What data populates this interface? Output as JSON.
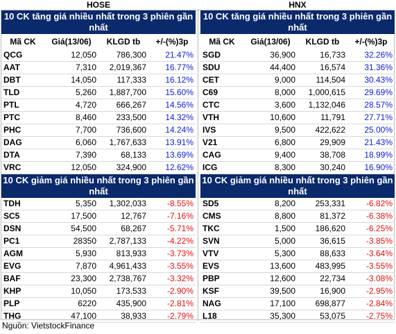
{
  "hose": {
    "exchange_label": "HOSE",
    "top_title": "10 CK tăng giá nhiều nhất trong 3 phiên gần nhất",
    "bottom_title": "10 CK giảm giá nhiều nhất trong 3 phiên gần nhất",
    "columns": [
      "Mã CK",
      "Giá(13/06)",
      "KLGD tb",
      "+/-(%)3p"
    ],
    "gainers": [
      {
        "ticker": "QCG",
        "price": "12,050",
        "volume": "786,300",
        "change": "21.47%"
      },
      {
        "ticker": "AAT",
        "price": "7,310",
        "volume": "2,019,367",
        "change": "16.77%"
      },
      {
        "ticker": "DBT",
        "price": "14,050",
        "volume": "117,333",
        "change": "16.12%"
      },
      {
        "ticker": "TLD",
        "price": "5,260",
        "volume": "1,887,700",
        "change": "15.60%"
      },
      {
        "ticker": "PTL",
        "price": "4,720",
        "volume": "666,267",
        "change": "14.56%"
      },
      {
        "ticker": "PTC",
        "price": "8,460",
        "volume": "233,500",
        "change": "14.32%"
      },
      {
        "ticker": "PHC",
        "price": "7,700",
        "volume": "736,600",
        "change": "14.24%"
      },
      {
        "ticker": "DAG",
        "price": "6,060",
        "volume": "1,767,633",
        "change": "13.91%"
      },
      {
        "ticker": "DTA",
        "price": "7,390",
        "volume": "68,133",
        "change": "13.69%"
      },
      {
        "ticker": "VRC",
        "price": "12,050",
        "volume": "324,900",
        "change": "12.62%"
      }
    ],
    "losers": [
      {
        "ticker": "TDH",
        "price": "5,350",
        "volume": "1,302,033",
        "change": "-8.55%"
      },
      {
        "ticker": "SC5",
        "price": "17,500",
        "volume": "12,767",
        "change": "-7.16%"
      },
      {
        "ticker": "DSN",
        "price": "54,500",
        "volume": "68,267",
        "change": "-5.71%"
      },
      {
        "ticker": "PC1",
        "price": "28350",
        "volume": "2,787,133",
        "change": "-4.22%"
      },
      {
        "ticker": "AGM",
        "price": "5,930",
        "volume": "813,933",
        "change": "-3.73%"
      },
      {
        "ticker": "EVG",
        "price": "7,870",
        "volume": "4,961,433",
        "change": "-3.55%"
      },
      {
        "ticker": "BAF",
        "price": "23,300",
        "volume": "2,738,767",
        "change": "-3.32%"
      },
      {
        "ticker": "KHP",
        "price": "10,050",
        "volume": "173,533",
        "change": "-2.90%"
      },
      {
        "ticker": "PLP",
        "price": "6220",
        "volume": "435,900",
        "change": "-2.81%"
      },
      {
        "ticker": "THG",
        "price": "47,100",
        "volume": "38,933",
        "change": "-2.79%"
      }
    ]
  },
  "hnx": {
    "exchange_label": "HNX",
    "top_title": "10 CK tăng giá nhiều nhất trong 3 phiên gần nhất",
    "bottom_title": "10 CK giảm giá nhiều nhất trong 3 phiên gần nhất",
    "columns": [
      "Mã CK",
      "Giá(13/06)",
      "KLGD tb",
      "+/-(%)3p"
    ],
    "gainers": [
      {
        "ticker": "SGD",
        "price": "36,900",
        "volume": "16,733",
        "change": "32.26%"
      },
      {
        "ticker": "SDU",
        "price": "44,400",
        "volume": "16,574",
        "change": "31.36%"
      },
      {
        "ticker": "CET",
        "price": "9,000",
        "volume": "114,504",
        "change": "30.43%"
      },
      {
        "ticker": "C69",
        "price": "8,000",
        "volume": "1,000,615",
        "change": "29.69%"
      },
      {
        "ticker": "CTC",
        "price": "3,600",
        "volume": "1,132,046",
        "change": "28.57%"
      },
      {
        "ticker": "VTH",
        "price": "10,600",
        "volume": "11,791",
        "change": "27.71%"
      },
      {
        "ticker": "IVS",
        "price": "9,500",
        "volume": "422,622",
        "change": "25.00%"
      },
      {
        "ticker": "V21",
        "price": "6,800",
        "volume": "29,909",
        "change": "21.43%"
      },
      {
        "ticker": "CAG",
        "price": "9,400",
        "volume": "38,708",
        "change": "18.99%"
      },
      {
        "ticker": "ICG",
        "price": "8,300",
        "volume": "30,240",
        "change": "16.90%"
      }
    ],
    "losers": [
      {
        "ticker": "SD5",
        "price": "8,200",
        "volume": "253,331",
        "change": "-6.82%"
      },
      {
        "ticker": "CMS",
        "price": "8,800",
        "volume": "81,372",
        "change": "-6.38%"
      },
      {
        "ticker": "TKC",
        "price": "1,500",
        "volume": "186,620",
        "change": "-6.25%"
      },
      {
        "ticker": "SVN",
        "price": "5,000",
        "volume": "36,615",
        "change": "-3.85%"
      },
      {
        "ticker": "VTV",
        "price": "5,300",
        "volume": "88,633",
        "change": "-3.64%"
      },
      {
        "ticker": "EVS",
        "price": "13,600",
        "volume": "483,995",
        "change": "-3.55%"
      },
      {
        "ticker": "PBP",
        "price": "12,600",
        "volume": "22,734",
        "change": "-3.08%"
      },
      {
        "ticker": "KSF",
        "price": "39,500",
        "volume": "16,900",
        "change": "-2.95%"
      },
      {
        "ticker": "NAG",
        "price": "17,100",
        "volume": "698,877",
        "change": "-2.84%"
      },
      {
        "ticker": "L18",
        "price": "35,300",
        "volume": "53,075",
        "change": "-2.75%"
      }
    ]
  },
  "source": "Nguồn: VietstockFinance",
  "colors": {
    "header_bg": "#0b2a6b",
    "gain": "#1020d0",
    "loss": "#e01010"
  }
}
